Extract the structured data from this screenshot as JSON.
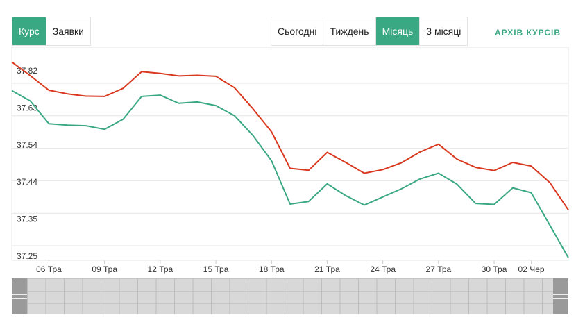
{
  "tabs": [
    {
      "label": "Курс",
      "active": true
    },
    {
      "label": "Заявки",
      "active": false
    }
  ],
  "periods": [
    {
      "label": "Сьогодні",
      "active": false
    },
    {
      "label": "Тиждень",
      "active": false
    },
    {
      "label": "Місяць",
      "active": true
    },
    {
      "label": "3 місяці",
      "active": false
    }
  ],
  "archive_label": "АРХІВ КУРСІВ",
  "colors": {
    "accent": "#3aa882",
    "sell_line": "#d9381e",
    "buy_line": "#3aa882"
  },
  "chart_data": {
    "type": "line",
    "title": "",
    "xlabel": "",
    "ylabel": "",
    "x_ticks": [
      {
        "label": "06 Тра",
        "index": 2
      },
      {
        "label": "09 Тра",
        "index": 5
      },
      {
        "label": "12 Тра",
        "index": 8
      },
      {
        "label": "15 Тра",
        "index": 11
      },
      {
        "label": "18 Тра",
        "index": 14
      },
      {
        "label": "21 Тра",
        "index": 17
      },
      {
        "label": "24 Тра",
        "index": 20
      },
      {
        "label": "27 Тра",
        "index": 23
      },
      {
        "label": "30 Тра",
        "index": 26
      },
      {
        "label": "02 Чер",
        "index": 28
      }
    ],
    "y_ticks": [
      37.82,
      37.63,
      37.54,
      37.44,
      37.35,
      37.25
    ],
    "ylim": [
      37.25,
      37.82
    ],
    "grid": true,
    "series": [
      {
        "values": [
          37.845,
          37.803,
          37.758,
          37.747,
          37.74,
          37.739,
          37.764,
          37.815,
          37.81,
          37.802,
          37.804,
          37.801,
          37.766,
          37.701,
          37.63,
          37.518,
          37.512,
          37.567,
          37.536,
          37.503,
          37.514,
          37.535,
          37.568,
          37.592,
          37.546,
          37.521,
          37.511,
          37.536,
          37.525,
          37.474,
          37.39
        ]
      },
      {
        "values": [
          37.757,
          37.725,
          37.655,
          37.651,
          37.649,
          37.638,
          37.669,
          37.739,
          37.743,
          37.718,
          37.722,
          37.711,
          37.68,
          37.619,
          37.541,
          37.408,
          37.416,
          37.47,
          37.434,
          37.405,
          37.43,
          37.455,
          37.485,
          37.503,
          37.469,
          37.41,
          37.407,
          37.458,
          37.443,
          37.343,
          37.243
        ]
      }
    ]
  }
}
